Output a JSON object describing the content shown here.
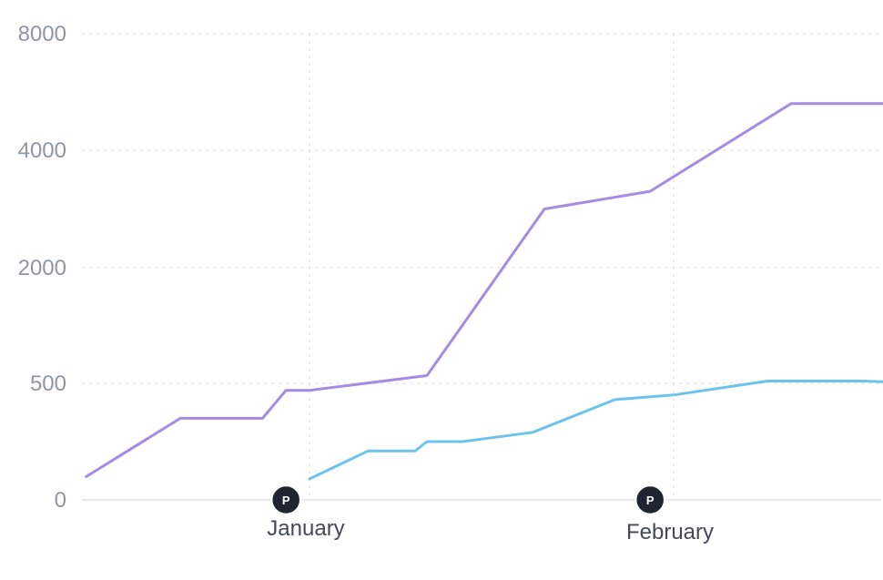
{
  "chart_data": {
    "type": "line",
    "title": "",
    "xlabel": "",
    "ylabel": "",
    "y_scale": "nonlinear (uniform tick spacing)",
    "y_ticks": [
      {
        "value": 0,
        "label": "0"
      },
      {
        "value": 500,
        "label": "500"
      },
      {
        "value": 2000,
        "label": "2000"
      },
      {
        "value": 4000,
        "label": "4000"
      },
      {
        "value": 8000,
        "label": "8000"
      }
    ],
    "x_ticks": [
      {
        "date": "January 1",
        "label": "January"
      },
      {
        "date": "February 1",
        "label": "February"
      }
    ],
    "x_range": [
      "December 13",
      "February 23"
    ],
    "grid": true,
    "legend": "none",
    "markers": [
      {
        "date": "December 30",
        "label": "P"
      },
      {
        "date": "January 30",
        "label": "P"
      }
    ],
    "series": [
      {
        "color": "#a58ce3",
        "points": [
          {
            "date": "December 13",
            "y": 100
          },
          {
            "date": "December 21",
            "y": 350
          },
          {
            "date": "December 28",
            "y": 350
          },
          {
            "date": "December 30",
            "y": 470
          },
          {
            "date": "January 1",
            "y": 470
          },
          {
            "date": "January 11",
            "y": 600
          },
          {
            "date": "January 21",
            "y": 3000
          },
          {
            "date": "January 30",
            "y": 3300
          },
          {
            "date": "February 11",
            "y": 5600
          },
          {
            "date": "February 23",
            "y": 5600
          }
        ]
      },
      {
        "color": "#6cc3ec",
        "points": [
          {
            "date": "January 1",
            "y": 90
          },
          {
            "date": "January 6",
            "y": 210
          },
          {
            "date": "January 10",
            "y": 210
          },
          {
            "date": "January 11",
            "y": 250
          },
          {
            "date": "January 14",
            "y": 250
          },
          {
            "date": "January 20",
            "y": 290
          },
          {
            "date": "January 27",
            "y": 430
          },
          {
            "date": "February 1",
            "y": 450
          },
          {
            "date": "February 9",
            "y": 530
          },
          {
            "date": "February 17",
            "y": 530
          },
          {
            "date": "February 23",
            "y": 500
          }
        ]
      }
    ]
  }
}
